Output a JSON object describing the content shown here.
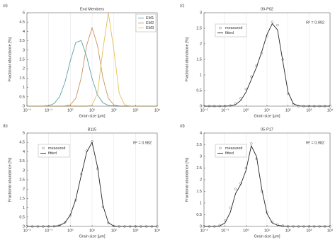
{
  "chart_data": [
    {
      "type": "line",
      "panel": "(a)",
      "title": "End Members",
      "xlabel": "Grain size [μm]",
      "ylabel": "Fractional abundance [%]",
      "xscale": "log",
      "xgrid": true,
      "ygrid": false,
      "legend": "upper right",
      "x": [
        0.01,
        0.0178,
        0.0316,
        0.0562,
        0.1,
        0.178,
        0.316,
        0.562,
        1,
        1.78,
        3.16,
        5.62,
        10,
        17.8,
        31.6,
        56.2,
        100,
        178,
        316,
        562,
        1000,
        1780,
        3160,
        5620,
        10000
      ],
      "xlim": [
        0.01,
        10000
      ],
      "xticks": [
        {
          "value": 0.01,
          "label": "10⁻²"
        },
        {
          "value": 0.1,
          "label": "10⁻¹"
        },
        {
          "value": 1,
          "label": "10⁰"
        },
        {
          "value": 10,
          "label": "10¹"
        },
        {
          "value": 100,
          "label": "10²"
        },
        {
          "value": 1000,
          "label": "10³"
        },
        {
          "value": 10000,
          "label": "10⁴"
        }
      ],
      "ylim": [
        0,
        5
      ],
      "yticks": [
        0,
        0.5,
        1,
        1.5,
        2,
        2.5,
        3,
        3.5,
        4,
        4.5,
        5
      ],
      "series": [
        {
          "name": "EM1",
          "color": "#5f9fa8",
          "values": [
            0,
            0,
            0,
            0.004,
            0.028,
            0.137,
            0.49,
            1.27,
            2.43,
            3.41,
            3.51,
            2.66,
            1.48,
            0.6,
            0.18,
            0.04,
            0.006,
            0,
            0,
            0,
            0,
            0,
            0,
            0,
            0
          ]
        },
        {
          "name": "EM2",
          "color": "#c8925c",
          "values": [
            0,
            0,
            0,
            0,
            0,
            0,
            0,
            0.007,
            0.07,
            0.42,
            1.51,
            3.25,
            4.2,
            3.25,
            1.51,
            0.42,
            0.07,
            0.007,
            0,
            0,
            0,
            0,
            0,
            0,
            0
          ]
        },
        {
          "name": "EM3",
          "color": "#e3c15e",
          "values": [
            0,
            0,
            0,
            0,
            0,
            0,
            0,
            0,
            0,
            0,
            0,
            0,
            0.06,
            0.68,
            3.03,
            5,
            3.03,
            0.68,
            0.06,
            0,
            0,
            0,
            0,
            0,
            0
          ]
        }
      ]
    },
    {
      "type": "line",
      "panel": "(c)",
      "title": "09-P02",
      "xlabel": "Grain size [μm]",
      "ylabel": "Fractional abundance [%]",
      "annotation": "R² = 0.992",
      "xscale": "log",
      "xgrid": true,
      "ygrid": false,
      "legend": "upper left",
      "x": [
        0.01,
        0.0178,
        0.0316,
        0.0562,
        0.1,
        0.178,
        0.316,
        0.562,
        1,
        1.78,
        3.16,
        5.62,
        10,
        17.8,
        31.6,
        56.2,
        100,
        178,
        316,
        562,
        1000,
        1780,
        3160,
        5620,
        10000
      ],
      "xlim": [
        0.01,
        10000
      ],
      "xticks": [
        {
          "value": 0.01,
          "label": "10⁻²"
        },
        {
          "value": 0.1,
          "label": "10⁻¹"
        },
        {
          "value": 1,
          "label": "10⁰"
        },
        {
          "value": 10,
          "label": "10¹"
        },
        {
          "value": 100,
          "label": "10²"
        },
        {
          "value": 1000,
          "label": "10³"
        },
        {
          "value": 10000,
          "label": "10⁴"
        }
      ],
      "ylim": [
        0,
        3
      ],
      "yticks": [
        0,
        0.5,
        1,
        1.5,
        2,
        2.5,
        3
      ],
      "series": [
        {
          "name": "measured",
          "color": "#777777",
          "marker": "circle",
          "values": [
            0,
            0,
            0,
            0,
            0,
            0.02,
            0.08,
            0.25,
            0.55,
            0.95,
            1.3,
            1.7,
            2.25,
            2.7,
            2.6,
            1.5,
            0.4,
            0.06,
            0,
            0,
            0,
            0,
            0,
            0,
            0
          ]
        },
        {
          "name": "fitted",
          "color": "#222222",
          "values": [
            0,
            0,
            0,
            0,
            0,
            0.01,
            0.05,
            0.18,
            0.45,
            0.85,
            1.25,
            1.75,
            2.3,
            2.65,
            2.45,
            1.45,
            0.45,
            0.08,
            0.01,
            0,
            0,
            0,
            0,
            0,
            0
          ]
        }
      ]
    },
    {
      "type": "line",
      "panel": "(b)",
      "title": "B115",
      "xlabel": "Grain size [μm]",
      "ylabel": "Fractional abundance [%]",
      "annotation": "R² = 0.982",
      "xscale": "log",
      "xgrid": true,
      "ygrid": false,
      "legend": "upper left",
      "x": [
        0.01,
        0.0178,
        0.0316,
        0.0562,
        0.1,
        0.178,
        0.316,
        0.562,
        1,
        1.78,
        3.16,
        5.62,
        10,
        17.8,
        31.6,
        56.2,
        100,
        178,
        316,
        562,
        1000,
        1780,
        3160,
        5620,
        10000
      ],
      "xlim": [
        0.01,
        10000
      ],
      "xticks": [
        {
          "value": 0.01,
          "label": "10⁻²"
        },
        {
          "value": 0.1,
          "label": "10⁻¹"
        },
        {
          "value": 1,
          "label": "10⁰"
        },
        {
          "value": 10,
          "label": "10¹"
        },
        {
          "value": 100,
          "label": "10²"
        },
        {
          "value": 1000,
          "label": "10³"
        },
        {
          "value": 10000,
          "label": "10⁴"
        }
      ],
      "ylim": [
        0,
        5
      ],
      "yticks": [
        0,
        0.5,
        1,
        1.5,
        2,
        2.5,
        3,
        3.5,
        4,
        4.5,
        5
      ],
      "series": [
        {
          "name": "measured",
          "color": "#777777",
          "marker": "circle",
          "values": [
            0,
            0,
            0,
            0,
            0,
            0.01,
            0.06,
            0.22,
            0.58,
            1.4,
            2.8,
            4.05,
            4.55,
            3.1,
            1.05,
            0.18,
            0.02,
            0,
            0,
            0,
            0,
            0,
            0,
            0,
            0
          ]
        },
        {
          "name": "fitted",
          "color": "#222222",
          "values": [
            0,
            0,
            0,
            0,
            0,
            0.01,
            0.05,
            0.2,
            0.61,
            1.46,
            2.73,
            3.97,
            4.5,
            3.18,
            1.12,
            0.2,
            0.02,
            0,
            0,
            0,
            0,
            0,
            0,
            0,
            0
          ]
        }
      ]
    },
    {
      "type": "line",
      "panel": "(d)",
      "title": "05-P17",
      "xlabel": "Grain size [μm]",
      "ylabel": "Fractional abundance [%]",
      "annotation": "R² = 0.982",
      "xscale": "log",
      "xgrid": true,
      "ygrid": false,
      "legend": "upper left",
      "x": [
        0.01,
        0.0178,
        0.0316,
        0.0562,
        0.1,
        0.178,
        0.316,
        0.562,
        1,
        1.78,
        3.16,
        5.62,
        10,
        17.8,
        31.6,
        56.2,
        100,
        178,
        316,
        562,
        1000,
        1780,
        3160,
        5620,
        10000
      ],
      "xlim": [
        0.01,
        10000
      ],
      "xticks": [
        {
          "value": 0.01,
          "label": "10⁻²"
        },
        {
          "value": 0.1,
          "label": "10⁻¹"
        },
        {
          "value": 1,
          "label": "10⁰"
        },
        {
          "value": 10,
          "label": "10¹"
        },
        {
          "value": 100,
          "label": "10²"
        },
        {
          "value": 1000,
          "label": "10³"
        },
        {
          "value": 10000,
          "label": "10⁴"
        }
      ],
      "ylim": [
        0,
        4
      ],
      "yticks": [
        0,
        0.5,
        1,
        1.5,
        2,
        2.5,
        3,
        3.5,
        4
      ],
      "series": [
        {
          "name": "measured",
          "color": "#777777",
          "marker": "circle",
          "values": [
            0,
            0,
            0,
            0.05,
            0.25,
            0.8,
            1.6,
            1.85,
            2.5,
            3.55,
            2.9,
            1.5,
            0.6,
            0.2,
            0.08,
            0.03,
            0,
            0,
            0,
            0,
            0,
            0,
            0,
            0,
            0
          ]
        },
        {
          "name": "fitted",
          "color": "#222222",
          "values": [
            0,
            0,
            0,
            0.02,
            0.15,
            0.6,
            1.4,
            1.8,
            2.4,
            3.45,
            3,
            1.6,
            0.55,
            0.15,
            0.05,
            0.02,
            0,
            0,
            0,
            0,
            0,
            0,
            0,
            0,
            0
          ]
        }
      ]
    }
  ]
}
